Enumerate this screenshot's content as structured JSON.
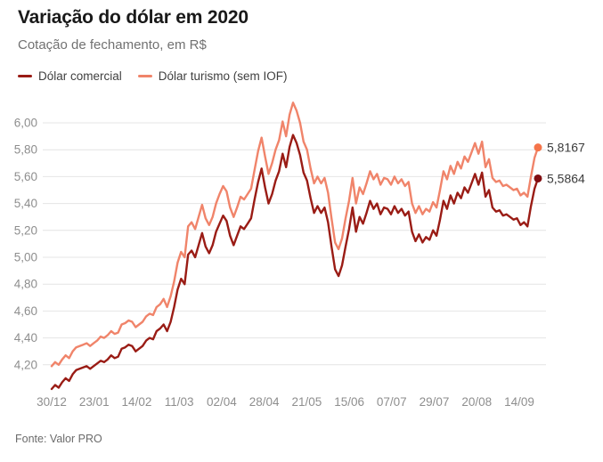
{
  "header": {
    "title": "Variação do dólar em 2020",
    "subtitle": "Cotação de fechamento, em R$"
  },
  "legend": [
    {
      "label": "Dólar comercial",
      "color": "#9a1c15"
    },
    {
      "label": "Dólar turismo (sem IOF)",
      "color": "#f0846a"
    }
  ],
  "footer": {
    "source": "Fonte: Valor PRO"
  },
  "chart_data": {
    "type": "line",
    "title": "Variação do dólar em 2020",
    "subtitle": "Cotação de fechamento, em R$",
    "unit": "R$",
    "grid": true,
    "legend_position": "top-left",
    "ylim": [
      4.0,
      6.2
    ],
    "yticks": [
      {
        "value": 4.2,
        "label": "4,20"
      },
      {
        "value": 4.4,
        "label": "4,40"
      },
      {
        "value": 4.6,
        "label": "4,60"
      },
      {
        "value": 4.8,
        "label": "4,80"
      },
      {
        "value": 5.0,
        "label": "5,00"
      },
      {
        "value": 5.2,
        "label": "5,20"
      },
      {
        "value": 5.4,
        "label": "5,40"
      },
      {
        "value": 5.6,
        "label": "5,60"
      },
      {
        "value": 5.8,
        "label": "5,80"
      },
      {
        "value": 6.0,
        "label": "6,00"
      }
    ],
    "x_tick_labels": [
      "30/12",
      "23/01",
      "14/02",
      "11/03",
      "02/04",
      "28/04",
      "21/05",
      "15/06",
      "07/07",
      "29/07",
      "20/08",
      "14/09"
    ],
    "series": [
      {
        "name": "Dólar comercial",
        "color": "#9a1c15",
        "dot_color": "#810d11",
        "end_label": "5,5864",
        "end_value": 5.5864,
        "values": [
          4.02,
          4.05,
          4.03,
          4.07,
          4.1,
          4.08,
          4.13,
          4.16,
          4.17,
          4.18,
          4.19,
          4.17,
          4.19,
          4.21,
          4.23,
          4.22,
          4.24,
          4.27,
          4.25,
          4.26,
          4.32,
          4.33,
          4.35,
          4.34,
          4.3,
          4.32,
          4.34,
          4.38,
          4.4,
          4.39,
          4.45,
          4.47,
          4.5,
          4.45,
          4.52,
          4.63,
          4.76,
          4.84,
          4.8,
          5.02,
          5.05,
          5.0,
          5.09,
          5.18,
          5.08,
          5.03,
          5.09,
          5.19,
          5.25,
          5.31,
          5.27,
          5.16,
          5.09,
          5.16,
          5.23,
          5.21,
          5.25,
          5.29,
          5.43,
          5.56,
          5.66,
          5.52,
          5.4,
          5.47,
          5.57,
          5.64,
          5.77,
          5.67,
          5.82,
          5.91,
          5.85,
          5.76,
          5.63,
          5.57,
          5.44,
          5.33,
          5.38,
          5.33,
          5.37,
          5.26,
          5.08,
          4.91,
          4.86,
          4.94,
          5.08,
          5.21,
          5.37,
          5.19,
          5.3,
          5.25,
          5.33,
          5.42,
          5.36,
          5.4,
          5.32,
          5.37,
          5.36,
          5.32,
          5.38,
          5.33,
          5.36,
          5.31,
          5.34,
          5.19,
          5.12,
          5.17,
          5.11,
          5.15,
          5.13,
          5.2,
          5.16,
          5.28,
          5.42,
          5.36,
          5.46,
          5.4,
          5.48,
          5.44,
          5.52,
          5.48,
          5.55,
          5.62,
          5.54,
          5.63,
          5.45,
          5.5,
          5.37,
          5.34,
          5.35,
          5.31,
          5.32,
          5.3,
          5.28,
          5.29,
          5.24,
          5.26,
          5.23,
          5.38,
          5.51,
          5.5864
        ]
      },
      {
        "name": "Dólar turismo (sem IOF)",
        "color": "#f0846a",
        "dot_color": "#f5744a",
        "end_label": "5,8167",
        "end_value": 5.8167,
        "values": [
          4.19,
          4.22,
          4.2,
          4.24,
          4.27,
          4.25,
          4.3,
          4.33,
          4.34,
          4.35,
          4.36,
          4.34,
          4.36,
          4.38,
          4.41,
          4.4,
          4.42,
          4.45,
          4.43,
          4.44,
          4.5,
          4.51,
          4.53,
          4.52,
          4.48,
          4.5,
          4.52,
          4.56,
          4.58,
          4.57,
          4.63,
          4.65,
          4.69,
          4.63,
          4.71,
          4.82,
          4.96,
          5.04,
          5.0,
          5.23,
          5.26,
          5.21,
          5.3,
          5.39,
          5.29,
          5.24,
          5.3,
          5.4,
          5.47,
          5.53,
          5.49,
          5.37,
          5.3,
          5.37,
          5.45,
          5.43,
          5.47,
          5.51,
          5.65,
          5.79,
          5.89,
          5.75,
          5.62,
          5.7,
          5.8,
          5.87,
          6.01,
          5.9,
          6.06,
          6.15,
          6.09,
          6.0,
          5.86,
          5.8,
          5.66,
          5.55,
          5.6,
          5.55,
          5.59,
          5.48,
          5.29,
          5.11,
          5.06,
          5.14,
          5.29,
          5.42,
          5.59,
          5.4,
          5.52,
          5.47,
          5.55,
          5.64,
          5.58,
          5.62,
          5.54,
          5.59,
          5.58,
          5.54,
          5.6,
          5.55,
          5.58,
          5.53,
          5.56,
          5.4,
          5.33,
          5.38,
          5.32,
          5.36,
          5.34,
          5.41,
          5.37,
          5.5,
          5.64,
          5.58,
          5.68,
          5.62,
          5.71,
          5.66,
          5.75,
          5.71,
          5.78,
          5.85,
          5.77,
          5.86,
          5.67,
          5.73,
          5.59,
          5.56,
          5.57,
          5.53,
          5.54,
          5.52,
          5.5,
          5.51,
          5.46,
          5.48,
          5.45,
          5.6,
          5.74,
          5.8167
        ]
      }
    ]
  }
}
